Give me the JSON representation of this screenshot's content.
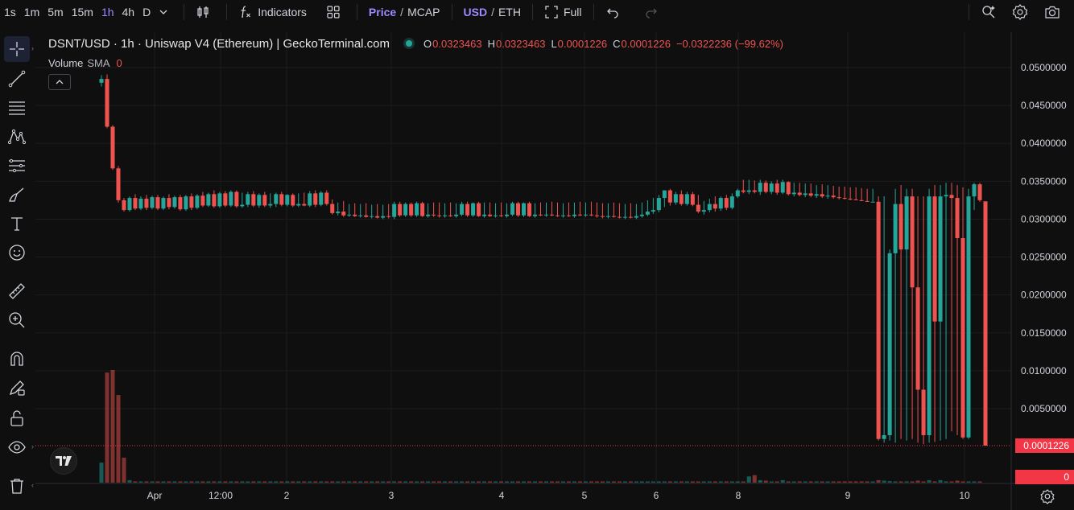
{
  "toolbar": {
    "timeframes": [
      "1s",
      "1m",
      "5m",
      "15m",
      "1h",
      "4h",
      "D"
    ],
    "active_timeframe": "1h",
    "indicators_label": "Indicators",
    "price_label": "Price",
    "mcap_label": "MCAP",
    "slash": "/",
    "usd_label": "USD",
    "eth_label": "ETH",
    "full_label": "Full"
  },
  "legend": {
    "title": "DSNT/USD · 1h · Uniswap V4 (Ethereum) | GeckoTerminal.com",
    "open_key": "O",
    "open": "0.0323463",
    "high_key": "H",
    "high": "0.0323463",
    "low_key": "L",
    "low": "0.0001226",
    "close_key": "C",
    "close": "0.0001226",
    "change": "−0.0322236 (−99.62%)"
  },
  "volume_legend": {
    "label": "Volume",
    "sma": "SMA",
    "value": "0"
  },
  "price_axis": {
    "labels": [
      "0.0500000",
      "0.0450000",
      "0.0400000",
      "0.0350000",
      "0.0300000",
      "0.0250000",
      "0.0200000",
      "0.0150000",
      "0.0100000",
      "0.0050000"
    ],
    "last_price": "0.0001226",
    "volume_tag": "0"
  },
  "time_axis": {
    "labels": [
      "Apr",
      "12:00",
      "2",
      "3",
      "4",
      "5",
      "6",
      "8",
      "9",
      "10"
    ]
  },
  "colors": {
    "up": "#26a69a",
    "down": "#ef5350",
    "last_price_line": "#f23645",
    "accent": "#9a8cff"
  },
  "chart_data": {
    "type": "candlestick",
    "title": "DSNT/USD · 1h · Uniswap V4 (Ethereum) | GeckoTerminal.com",
    "ylim": [
      0.0001226,
      0.05
    ],
    "x_ticks": [
      "Apr",
      "12:00",
      "2",
      "3",
      "4",
      "5",
      "6",
      "8",
      "9",
      "10"
    ],
    "y_ticks": [
      0.05,
      0.045,
      0.04,
      0.035,
      0.03,
      0.025,
      0.02,
      0.015,
      0.01,
      0.005
    ],
    "last_price": 0.0001226,
    "series": [
      {
        "o": 0.048,
        "h": 0.049,
        "l": 0.0475,
        "c": 0.0485
      },
      {
        "o": 0.0485,
        "h": 0.0491,
        "l": 0.042,
        "c": 0.0422
      },
      {
        "o": 0.0422,
        "h": 0.0424,
        "l": 0.0365,
        "c": 0.0367
      },
      {
        "o": 0.0367,
        "h": 0.037,
        "l": 0.0322,
        "c": 0.0325
      },
      {
        "o": 0.0325,
        "h": 0.0328,
        "l": 0.031,
        "c": 0.0312
      },
      {
        "o": 0.0312,
        "h": 0.033,
        "l": 0.031,
        "c": 0.0328
      },
      {
        "o": 0.0328,
        "h": 0.0333,
        "l": 0.0312,
        "c": 0.0314
      },
      {
        "o": 0.0314,
        "h": 0.033,
        "l": 0.0312,
        "c": 0.0327
      },
      {
        "o": 0.0327,
        "h": 0.0332,
        "l": 0.0312,
        "c": 0.0315
      },
      {
        "o": 0.0315,
        "h": 0.0331,
        "l": 0.0313,
        "c": 0.0329
      },
      {
        "o": 0.0329,
        "h": 0.0332,
        "l": 0.0312,
        "c": 0.0314
      },
      {
        "o": 0.0314,
        "h": 0.033,
        "l": 0.0312,
        "c": 0.0328
      },
      {
        "o": 0.0328,
        "h": 0.0333,
        "l": 0.0313,
        "c": 0.0316
      },
      {
        "o": 0.0316,
        "h": 0.0331,
        "l": 0.0314,
        "c": 0.0329
      },
      {
        "o": 0.0329,
        "h": 0.0332,
        "l": 0.0311,
        "c": 0.0313
      },
      {
        "o": 0.0313,
        "h": 0.0332,
        "l": 0.0311,
        "c": 0.033
      },
      {
        "o": 0.033,
        "h": 0.0334,
        "l": 0.0312,
        "c": 0.0315
      },
      {
        "o": 0.0315,
        "h": 0.0333,
        "l": 0.0313,
        "c": 0.0331
      },
      {
        "o": 0.0331,
        "h": 0.0336,
        "l": 0.0316,
        "c": 0.0318
      },
      {
        "o": 0.0318,
        "h": 0.0335,
        "l": 0.0316,
        "c": 0.0333
      },
      {
        "o": 0.0333,
        "h": 0.0338,
        "l": 0.0315,
        "c": 0.0317
      },
      {
        "o": 0.0317,
        "h": 0.0336,
        "l": 0.0315,
        "c": 0.0334
      },
      {
        "o": 0.0334,
        "h": 0.0337,
        "l": 0.0316,
        "c": 0.0318
      },
      {
        "o": 0.0318,
        "h": 0.0338,
        "l": 0.0316,
        "c": 0.0336
      },
      {
        "o": 0.0336,
        "h": 0.0338,
        "l": 0.0315,
        "c": 0.0317
      },
      {
        "o": 0.0317,
        "h": 0.0335,
        "l": 0.0315,
        "c": 0.0319
      },
      {
        "o": 0.0319,
        "h": 0.0336,
        "l": 0.0316,
        "c": 0.0333
      },
      {
        "o": 0.0333,
        "h": 0.0337,
        "l": 0.0316,
        "c": 0.0318
      },
      {
        "o": 0.0318,
        "h": 0.0334,
        "l": 0.0315,
        "c": 0.0332
      },
      {
        "o": 0.0332,
        "h": 0.0336,
        "l": 0.0316,
        "c": 0.0318
      },
      {
        "o": 0.0318,
        "h": 0.0334,
        "l": 0.0315,
        "c": 0.032
      },
      {
        "o": 0.032,
        "h": 0.0335,
        "l": 0.0316,
        "c": 0.0333
      },
      {
        "o": 0.0333,
        "h": 0.0336,
        "l": 0.0317,
        "c": 0.0319
      },
      {
        "o": 0.0319,
        "h": 0.0333,
        "l": 0.0317,
        "c": 0.0332
      },
      {
        "o": 0.0332,
        "h": 0.0334,
        "l": 0.0316,
        "c": 0.0318
      },
      {
        "o": 0.0318,
        "h": 0.0334,
        "l": 0.0316,
        "c": 0.032
      },
      {
        "o": 0.032,
        "h": 0.0335,
        "l": 0.0317,
        "c": 0.0318
      },
      {
        "o": 0.0318,
        "h": 0.0337,
        "l": 0.0316,
        "c": 0.0334
      },
      {
        "o": 0.0334,
        "h": 0.0338,
        "l": 0.0316,
        "c": 0.0319
      },
      {
        "o": 0.0319,
        "h": 0.0337,
        "l": 0.0317,
        "c": 0.0335
      },
      {
        "o": 0.0335,
        "h": 0.0338,
        "l": 0.0318,
        "c": 0.032
      },
      {
        "o": 0.032,
        "h": 0.0326,
        "l": 0.0306,
        "c": 0.0308
      },
      {
        "o": 0.0308,
        "h": 0.0322,
        "l": 0.0305,
        "c": 0.031
      },
      {
        "o": 0.031,
        "h": 0.0324,
        "l": 0.0303,
        "c": 0.0305
      },
      {
        "o": 0.0305,
        "h": 0.032,
        "l": 0.0303,
        "c": 0.0306
      },
      {
        "o": 0.0306,
        "h": 0.0321,
        "l": 0.0303,
        "c": 0.0304
      },
      {
        "o": 0.0304,
        "h": 0.032,
        "l": 0.0302,
        "c": 0.0305
      },
      {
        "o": 0.0305,
        "h": 0.0321,
        "l": 0.0302,
        "c": 0.0303
      },
      {
        "o": 0.0303,
        "h": 0.0319,
        "l": 0.0301,
        "c": 0.0304
      },
      {
        "o": 0.0304,
        "h": 0.032,
        "l": 0.0301,
        "c": 0.0302
      },
      {
        "o": 0.0302,
        "h": 0.0319,
        "l": 0.03,
        "c": 0.0304
      },
      {
        "o": 0.0304,
        "h": 0.032,
        "l": 0.0301,
        "c": 0.0303
      },
      {
        "o": 0.0303,
        "h": 0.0323,
        "l": 0.03,
        "c": 0.032
      },
      {
        "o": 0.032,
        "h": 0.0323,
        "l": 0.0303,
        "c": 0.0305
      },
      {
        "o": 0.0305,
        "h": 0.0322,
        "l": 0.0303,
        "c": 0.032
      },
      {
        "o": 0.032,
        "h": 0.0322,
        "l": 0.0303,
        "c": 0.0305
      },
      {
        "o": 0.0305,
        "h": 0.0323,
        "l": 0.0303,
        "c": 0.0321
      },
      {
        "o": 0.0321,
        "h": 0.0323,
        "l": 0.0303,
        "c": 0.0304
      },
      {
        "o": 0.0304,
        "h": 0.0321,
        "l": 0.0302,
        "c": 0.0306
      },
      {
        "o": 0.0306,
        "h": 0.0322,
        "l": 0.0303,
        "c": 0.0305
      },
      {
        "o": 0.0305,
        "h": 0.0322,
        "l": 0.0302,
        "c": 0.0304
      },
      {
        "o": 0.0304,
        "h": 0.0321,
        "l": 0.0302,
        "c": 0.0305
      },
      {
        "o": 0.0305,
        "h": 0.0322,
        "l": 0.0303,
        "c": 0.0304
      },
      {
        "o": 0.0304,
        "h": 0.0321,
        "l": 0.0302,
        "c": 0.0306
      },
      {
        "o": 0.0306,
        "h": 0.0323,
        "l": 0.0304,
        "c": 0.032
      },
      {
        "o": 0.032,
        "h": 0.0323,
        "l": 0.0303,
        "c": 0.0305
      },
      {
        "o": 0.0305,
        "h": 0.0322,
        "l": 0.0303,
        "c": 0.0321
      },
      {
        "o": 0.0321,
        "h": 0.0323,
        "l": 0.0303,
        "c": 0.0304
      },
      {
        "o": 0.0304,
        "h": 0.0322,
        "l": 0.0302,
        "c": 0.0306
      },
      {
        "o": 0.0306,
        "h": 0.0322,
        "l": 0.0303,
        "c": 0.0304
      },
      {
        "o": 0.0304,
        "h": 0.0321,
        "l": 0.0302,
        "c": 0.0305
      },
      {
        "o": 0.0305,
        "h": 0.0322,
        "l": 0.0303,
        "c": 0.0304
      },
      {
        "o": 0.0304,
        "h": 0.0321,
        "l": 0.0302,
        "c": 0.0306
      },
      {
        "o": 0.0306,
        "h": 0.0323,
        "l": 0.0304,
        "c": 0.0321
      },
      {
        "o": 0.0321,
        "h": 0.0323,
        "l": 0.0303,
        "c": 0.0305
      },
      {
        "o": 0.0305,
        "h": 0.0322,
        "l": 0.0303,
        "c": 0.0321
      },
      {
        "o": 0.0321,
        "h": 0.0323,
        "l": 0.0303,
        "c": 0.0304
      },
      {
        "o": 0.0304,
        "h": 0.0321,
        "l": 0.0302,
        "c": 0.0306
      },
      {
        "o": 0.0306,
        "h": 0.0322,
        "l": 0.0304,
        "c": 0.0305
      },
      {
        "o": 0.0305,
        "h": 0.0322,
        "l": 0.0303,
        "c": 0.0306
      },
      {
        "o": 0.0306,
        "h": 0.0323,
        "l": 0.0304,
        "c": 0.0305
      },
      {
        "o": 0.0305,
        "h": 0.0322,
        "l": 0.0303,
        "c": 0.0304
      },
      {
        "o": 0.0304,
        "h": 0.0321,
        "l": 0.0302,
        "c": 0.0305
      },
      {
        "o": 0.0305,
        "h": 0.0322,
        "l": 0.0303,
        "c": 0.0304
      },
      {
        "o": 0.0304,
        "h": 0.0322,
        "l": 0.0302,
        "c": 0.0306
      },
      {
        "o": 0.0306,
        "h": 0.0323,
        "l": 0.0304,
        "c": 0.0305
      },
      {
        "o": 0.0305,
        "h": 0.0322,
        "l": 0.0303,
        "c": 0.0306
      },
      {
        "o": 0.0306,
        "h": 0.0323,
        "l": 0.0304,
        "c": 0.0305
      },
      {
        "o": 0.0305,
        "h": 0.0322,
        "l": 0.0302,
        "c": 0.0304
      },
      {
        "o": 0.0304,
        "h": 0.0321,
        "l": 0.0301,
        "c": 0.0303
      },
      {
        "o": 0.0303,
        "h": 0.0321,
        "l": 0.0301,
        "c": 0.0304
      },
      {
        "o": 0.0304,
        "h": 0.0322,
        "l": 0.0302,
        "c": 0.0303
      },
      {
        "o": 0.0303,
        "h": 0.0321,
        "l": 0.0301,
        "c": 0.0302
      },
      {
        "o": 0.0302,
        "h": 0.032,
        "l": 0.03,
        "c": 0.0303
      },
      {
        "o": 0.0303,
        "h": 0.0321,
        "l": 0.0301,
        "c": 0.0302
      },
      {
        "o": 0.0302,
        "h": 0.032,
        "l": 0.03,
        "c": 0.0304
      },
      {
        "o": 0.0304,
        "h": 0.0322,
        "l": 0.0302,
        "c": 0.0306
      },
      {
        "o": 0.0306,
        "h": 0.0325,
        "l": 0.0304,
        "c": 0.031
      },
      {
        "o": 0.031,
        "h": 0.0328,
        "l": 0.0307,
        "c": 0.0312
      },
      {
        "o": 0.0312,
        "h": 0.0332,
        "l": 0.0309,
        "c": 0.0328
      },
      {
        "o": 0.0328,
        "h": 0.0337,
        "l": 0.0316,
        "c": 0.0338
      },
      {
        "o": 0.0338,
        "h": 0.034,
        "l": 0.0318,
        "c": 0.0322
      },
      {
        "o": 0.0322,
        "h": 0.0336,
        "l": 0.0319,
        "c": 0.0333
      },
      {
        "o": 0.0333,
        "h": 0.0338,
        "l": 0.0318,
        "c": 0.032
      },
      {
        "o": 0.032,
        "h": 0.0336,
        "l": 0.0318,
        "c": 0.0333
      },
      {
        "o": 0.0333,
        "h": 0.0336,
        "l": 0.0317,
        "c": 0.0319
      },
      {
        "o": 0.0319,
        "h": 0.0332,
        "l": 0.0308,
        "c": 0.031
      },
      {
        "o": 0.031,
        "h": 0.0324,
        "l": 0.0306,
        "c": 0.0312
      },
      {
        "o": 0.0312,
        "h": 0.0327,
        "l": 0.0309,
        "c": 0.032
      },
      {
        "o": 0.032,
        "h": 0.033,
        "l": 0.031,
        "c": 0.0314
      },
      {
        "o": 0.0314,
        "h": 0.033,
        "l": 0.0311,
        "c": 0.0328
      },
      {
        "o": 0.0328,
        "h": 0.0332,
        "l": 0.0312,
        "c": 0.0315
      },
      {
        "o": 0.0315,
        "h": 0.0334,
        "l": 0.0313,
        "c": 0.033
      },
      {
        "o": 0.033,
        "h": 0.034,
        "l": 0.0328,
        "c": 0.0338
      },
      {
        "o": 0.0338,
        "h": 0.0352,
        "l": 0.0334,
        "c": 0.0336
      },
      {
        "o": 0.0336,
        "h": 0.0352,
        "l": 0.0333,
        "c": 0.0338
      },
      {
        "o": 0.0338,
        "h": 0.0351,
        "l": 0.0334,
        "c": 0.0336
      },
      {
        "o": 0.0336,
        "h": 0.0352,
        "l": 0.0332,
        "c": 0.0348
      },
      {
        "o": 0.0348,
        "h": 0.0351,
        "l": 0.0334,
        "c": 0.0336
      },
      {
        "o": 0.0336,
        "h": 0.035,
        "l": 0.0333,
        "c": 0.0347
      },
      {
        "o": 0.0347,
        "h": 0.0352,
        "l": 0.0332,
        "c": 0.0335
      },
      {
        "o": 0.0335,
        "h": 0.0352,
        "l": 0.0333,
        "c": 0.0349
      },
      {
        "o": 0.0349,
        "h": 0.035,
        "l": 0.0331,
        "c": 0.0333
      },
      {
        "o": 0.0333,
        "h": 0.0348,
        "l": 0.033,
        "c": 0.0335
      },
      {
        "o": 0.0335,
        "h": 0.0348,
        "l": 0.033,
        "c": 0.0332
      },
      {
        "o": 0.0332,
        "h": 0.0347,
        "l": 0.0329,
        "c": 0.0334
      },
      {
        "o": 0.0334,
        "h": 0.0347,
        "l": 0.0329,
        "c": 0.0331
      },
      {
        "o": 0.0331,
        "h": 0.0345,
        "l": 0.0328,
        "c": 0.0333
      },
      {
        "o": 0.0333,
        "h": 0.0346,
        "l": 0.0328,
        "c": 0.033
      },
      {
        "o": 0.033,
        "h": 0.0345,
        "l": 0.0327,
        "c": 0.0331
      },
      {
        "o": 0.0331,
        "h": 0.0344,
        "l": 0.0327,
        "c": 0.0329
      },
      {
        "o": 0.0329,
        "h": 0.0343,
        "l": 0.0326,
        "c": 0.0328
      },
      {
        "o": 0.0328,
        "h": 0.0343,
        "l": 0.0326,
        "c": 0.0327
      },
      {
        "o": 0.0327,
        "h": 0.0342,
        "l": 0.0325,
        "c": 0.0326
      },
      {
        "o": 0.0326,
        "h": 0.0342,
        "l": 0.0325,
        "c": 0.0325
      },
      {
        "o": 0.0325,
        "h": 0.0341,
        "l": 0.0324,
        "c": 0.0324
      },
      {
        "o": 0.0324,
        "h": 0.034,
        "l": 0.0323,
        "c": 0.0323
      },
      {
        "o": 0.0323,
        "h": 0.034,
        "l": 0.0323,
        "c": 0.0323
      },
      {
        "o": 0.0323,
        "h": 0.033,
        "l": 0.0008,
        "c": 0.001
      },
      {
        "o": 0.001,
        "h": 0.033,
        "l": 0.0005,
        "c": 0.0015
      },
      {
        "o": 0.0015,
        "h": 0.026,
        "l": 0.0008,
        "c": 0.0255
      },
      {
        "o": 0.0255,
        "h": 0.034,
        "l": 0.0005,
        "c": 0.032
      },
      {
        "o": 0.032,
        "h": 0.0345,
        "l": 0.001,
        "c": 0.026
      },
      {
        "o": 0.026,
        "h": 0.034,
        "l": 0.0008,
        "c": 0.033
      },
      {
        "o": 0.033,
        "h": 0.034,
        "l": 0.001,
        "c": 0.021
      },
      {
        "o": 0.021,
        "h": 0.033,
        "l": 0.0005,
        "c": 0.0075
      },
      {
        "o": 0.0075,
        "h": 0.033,
        "l": 0.0003,
        "c": 0.0015
      },
      {
        "o": 0.0015,
        "h": 0.034,
        "l": 0.0005,
        "c": 0.033
      },
      {
        "o": 0.033,
        "h": 0.0345,
        "l": 0.0006,
        "c": 0.0165
      },
      {
        "o": 0.0165,
        "h": 0.0345,
        "l": 0.0008,
        "c": 0.033
      },
      {
        "o": 0.033,
        "h": 0.0348,
        "l": 0.001,
        "c": 0.0332
      },
      {
        "o": 0.0332,
        "h": 0.0348,
        "l": 0.002,
        "c": 0.0328
      },
      {
        "o": 0.0328,
        "h": 0.0345,
        "l": 0.0015,
        "c": 0.0275
      },
      {
        "o": 0.0275,
        "h": 0.0342,
        "l": 0.001,
        "c": 0.0012
      },
      {
        "o": 0.0012,
        "h": 0.034,
        "l": 0.001,
        "c": 0.033
      },
      {
        "o": 0.033,
        "h": 0.0348,
        "l": 0.0312,
        "c": 0.0346
      },
      {
        "o": 0.0346,
        "h": 0.0348,
        "l": 0.0323,
        "c": 0.0325
      },
      {
        "o": 0.0323463,
        "h": 0.0323463,
        "l": 0.0001226,
        "c": 0.0001226
      }
    ],
    "volume": [
      0.8,
      4.4,
      4.5,
      3.5,
      1.0,
      0.1,
      0.05,
      0.05,
      0.05,
      0.05,
      0.05,
      0.05,
      0.05,
      0.05,
      0.05,
      0.05,
      0.05,
      0.05,
      0.05,
      0.05,
      0.05,
      0.05,
      0.05,
      0.05,
      0.05,
      0.05,
      0.05,
      0.05,
      0.05,
      0.05,
      0.05,
      0.05,
      0.05,
      0.05,
      0.05,
      0.05,
      0.05,
      0.05,
      0.05,
      0.05,
      0.05,
      0.05,
      0.05,
      0.05,
      0.05,
      0.05,
      0.05,
      0.05,
      0.05,
      0.05,
      0.05,
      0.05,
      0.05,
      0.05,
      0.05,
      0.05,
      0.05,
      0.05,
      0.05,
      0.05,
      0.05,
      0.05,
      0.05,
      0.05,
      0.05,
      0.05,
      0.05,
      0.05,
      0.05,
      0.05,
      0.05,
      0.05,
      0.05,
      0.05,
      0.05,
      0.05,
      0.05,
      0.05,
      0.05,
      0.05,
      0.05,
      0.05,
      0.05,
      0.05,
      0.05,
      0.05,
      0.05,
      0.05,
      0.05,
      0.05,
      0.05,
      0.05,
      0.05,
      0.05,
      0.05,
      0.05,
      0.05,
      0.05,
      0.05,
      0.05,
      0.05,
      0.05,
      0.05,
      0.05,
      0.05,
      0.05,
      0.05,
      0.05,
      0.05,
      0.05,
      0.05,
      0.05,
      0.05,
      0.05,
      0.05,
      0.25,
      0.3,
      0.1,
      0.08,
      0.05,
      0.05,
      0.1,
      0.05,
      0.05,
      0.05,
      0.05,
      0.05,
      0.05,
      0.05,
      0.05,
      0.05,
      0.05,
      0.05,
      0.05,
      0.05,
      0.05,
      0.05,
      0.05,
      0.1,
      0.08,
      0.06,
      0.05,
      0.05,
      0.05,
      0.05,
      0.08,
      0.05,
      0.1,
      0.05,
      0.1,
      0.05,
      0.05,
      0.08,
      0.05,
      0.05,
      0.05,
      0.05
    ],
    "volume_units": "relative"
  }
}
